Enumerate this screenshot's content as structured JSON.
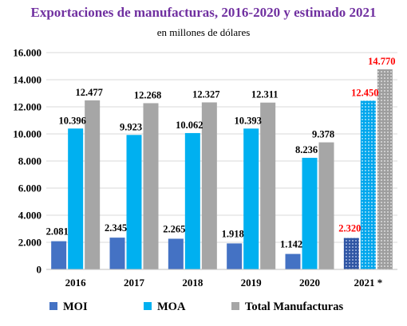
{
  "chart_data": {
    "type": "bar",
    "title": "Exportaciones de manufacturas, 2016-2020 y estimado 2021",
    "subtitle": "en  millones de dólares",
    "categories": [
      "2016",
      "2017",
      "2018",
      "2019",
      "2020",
      "2021 *"
    ],
    "series": [
      {
        "name": "MOI",
        "values": [
          2081,
          2345,
          2265,
          1918,
          1142,
          2320
        ],
        "labels": [
          "2.081",
          "2.345",
          "2.265",
          "1.918",
          "1.142",
          "2.320"
        ],
        "color": "#4472C4"
      },
      {
        "name": "MOA",
        "values": [
          10396,
          9923,
          10062,
          10393,
          8236,
          12450
        ],
        "labels": [
          "10.396",
          "9.923",
          "10.062",
          "10.393",
          "8.236",
          "12.450"
        ],
        "color": "#00B0F0"
      },
      {
        "name": "Total Manufacturas",
        "values": [
          12477,
          12268,
          12327,
          12311,
          9378,
          14770
        ],
        "labels": [
          "12.477",
          "12.268",
          "12.327",
          "12.311",
          "9.378",
          "14.770"
        ],
        "color": "#A6A6A6"
      }
    ],
    "ylim": [
      0,
      16000
    ],
    "yticks": [
      0,
      2000,
      4000,
      6000,
      8000,
      10000,
      12000,
      14000,
      16000
    ],
    "ytick_labels": [
      "0",
      "2.000",
      "4.000",
      "6.000",
      "8.000",
      "10.000",
      "12.000",
      "14.000",
      "16.000"
    ],
    "grid": true,
    "legend_position": "bottom",
    "estimated_category_index": 5,
    "estimated_pattern": "dotted",
    "title_color": "#7030A0",
    "label_color": "#000000",
    "estimated_label_color": "#FF0000"
  }
}
